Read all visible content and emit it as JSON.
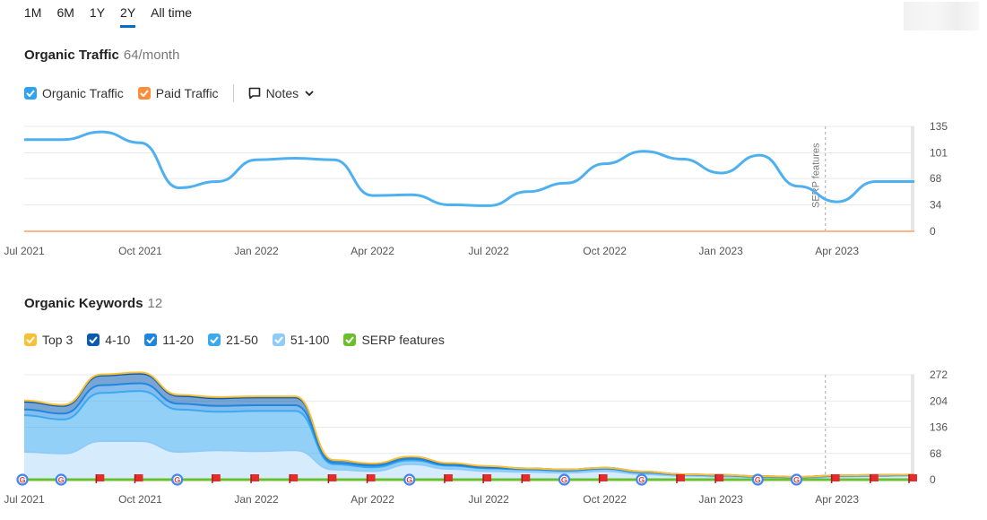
{
  "ranges": [
    "1M",
    "6M",
    "1Y",
    "2Y",
    "All time"
  ],
  "active_range": "2Y",
  "traffic": {
    "title": "Organic Traffic",
    "value": "64/month",
    "legend": [
      {
        "label": "Organic Traffic",
        "color": "#2ea3f2"
      },
      {
        "label": "Paid Traffic",
        "color": "#ff8c3a"
      }
    ],
    "notes_label": "Notes"
  },
  "keywords": {
    "title": "Organic Keywords",
    "value": "12",
    "legend": [
      {
        "label": "Top 3",
        "color": "#f9c035"
      },
      {
        "label": "4-10",
        "color": "#0a5bb0"
      },
      {
        "label": "11-20",
        "color": "#1f86e0"
      },
      {
        "label": "21-50",
        "color": "#3aa9f2"
      },
      {
        "label": "51-100",
        "color": "#8fcbf8"
      },
      {
        "label": "SERP features",
        "color": "#6abf2c"
      }
    ]
  },
  "x_ticks": [
    "Jul 2021",
    "Oct 2021",
    "Jan 2022",
    "Apr 2022",
    "Jul 2022",
    "Oct 2022",
    "Jan 2023",
    "Apr 2023"
  ],
  "annotation": "SERP features",
  "chart_data": [
    {
      "type": "line",
      "title": "Organic Traffic",
      "ylim": [
        0,
        135
      ],
      "y_ticks": [
        0,
        34,
        68,
        101,
        135
      ],
      "x_ticks": [
        "Jul 2021",
        "Oct 2021",
        "Jan 2022",
        "Apr 2022",
        "Jul 2022",
        "Oct 2022",
        "Jan 2023",
        "Apr 2023"
      ],
      "x": [
        "2021-07",
        "2021-08",
        "2021-09",
        "2021-10",
        "2021-11",
        "2021-12",
        "2022-01",
        "2022-02",
        "2022-03",
        "2022-04",
        "2022-05",
        "2022-06",
        "2022-07",
        "2022-08",
        "2022-09",
        "2022-10",
        "2022-11",
        "2022-12",
        "2023-01",
        "2023-02",
        "2023-03",
        "2023-04",
        "2023-05",
        "2023-06"
      ],
      "series": [
        {
          "name": "Organic Traffic",
          "color": "#4fb0ef",
          "values": [
            118,
            118,
            128,
            114,
            56,
            64,
            92,
            94,
            92,
            46,
            47,
            34,
            33,
            51,
            62,
            87,
            103,
            93,
            75,
            98,
            58,
            38,
            64,
            64
          ]
        },
        {
          "name": "Paid Traffic",
          "color": "#ffb58a",
          "values": [
            0,
            0,
            0,
            0,
            0,
            0,
            0,
            0,
            0,
            0,
            0,
            0,
            0,
            0,
            0,
            0,
            0,
            0,
            0,
            0,
            0,
            0,
            0,
            0
          ]
        }
      ],
      "annotation": {
        "label": "SERP features",
        "x": "2023-03"
      },
      "grid": true
    },
    {
      "type": "area",
      "title": "Organic Keywords",
      "ylim": [
        0,
        272
      ],
      "y_ticks": [
        0,
        68,
        136,
        204,
        272
      ],
      "x_ticks": [
        "Jul 2021",
        "Oct 2021",
        "Jan 2022",
        "Apr 2022",
        "Jul 2022",
        "Oct 2022",
        "Jan 2023",
        "Apr 2023"
      ],
      "x": [
        "2021-07",
        "2021-08",
        "2021-09",
        "2021-10",
        "2021-11",
        "2021-12",
        "2022-01",
        "2022-02",
        "2022-03",
        "2022-04",
        "2022-05",
        "2022-06",
        "2022-07",
        "2022-08",
        "2022-09",
        "2022-10",
        "2022-11",
        "2022-12",
        "2023-01",
        "2023-02",
        "2023-03",
        "2023-04",
        "2023-05",
        "2023-06"
      ],
      "stacked": true,
      "series": [
        {
          "name": "51-100",
          "color": "#8fcbf8",
          "values": [
            72,
            68,
            100,
            100,
            72,
            76,
            74,
            76,
            26,
            22,
            40,
            28,
            22,
            20,
            18,
            22,
            14,
            10,
            8,
            6,
            4,
            8,
            9,
            10
          ]
        },
        {
          "name": "21-50",
          "color": "#3aa9f2",
          "values": [
            95,
            88,
            125,
            130,
            110,
            100,
            104,
            102,
            14,
            10,
            10,
            8,
            7,
            6,
            5,
            6,
            4,
            3,
            3,
            2,
            2,
            2,
            2,
            2
          ]
        },
        {
          "name": "11-20",
          "color": "#1f86e0",
          "values": [
            15,
            15,
            20,
            20,
            15,
            15,
            15,
            15,
            4,
            4,
            4,
            2,
            2,
            1,
            1,
            1,
            1,
            0,
            0,
            0,
            0,
            0,
            0,
            0
          ]
        },
        {
          "name": "4-10",
          "color": "#0a5bb0",
          "values": [
            20,
            20,
            25,
            25,
            20,
            20,
            20,
            20,
            6,
            5,
            5,
            4,
            3,
            2,
            2,
            2,
            2,
            1,
            1,
            1,
            1,
            1,
            1,
            1
          ]
        },
        {
          "name": "Top 3",
          "color": "#f9c035",
          "values": [
            3,
            3,
            3,
            3,
            3,
            3,
            3,
            3,
            1,
            1,
            1,
            1,
            1,
            0,
            0,
            0,
            0,
            0,
            0,
            0,
            0,
            0,
            0,
            0
          ]
        }
      ],
      "serp_markers": [
        "G",
        "G",
        "F",
        "F",
        "G",
        "F",
        "F",
        "F",
        "F",
        "F",
        "G",
        "F",
        "F",
        "F",
        "G",
        "F",
        "G",
        "F",
        "F",
        "G",
        "G",
        "F",
        "F",
        "F"
      ],
      "grid": true
    }
  ]
}
